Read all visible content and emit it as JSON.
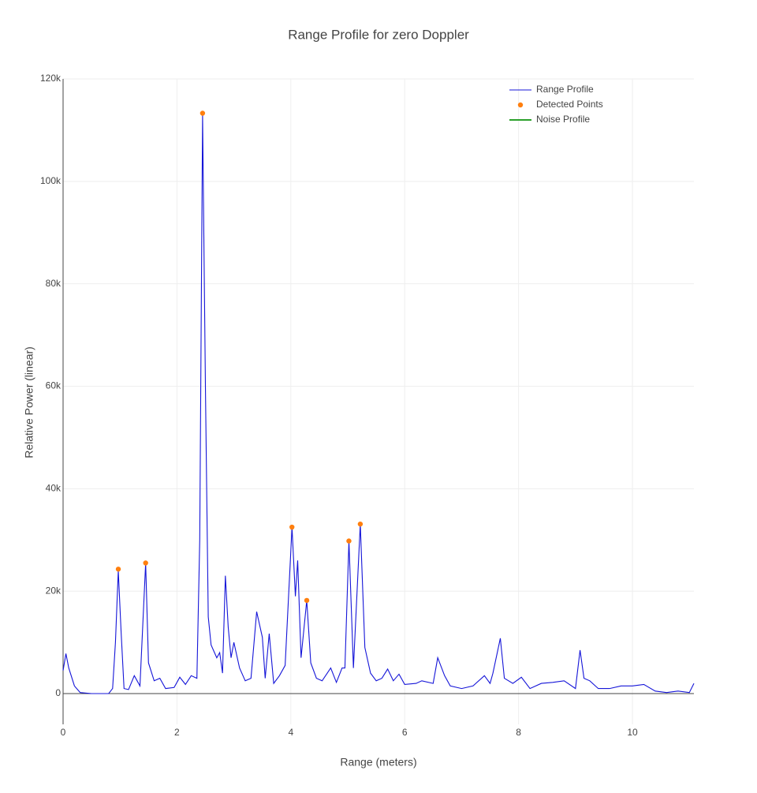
{
  "chart_data": {
    "type": "line",
    "title": "Range Profile for zero Doppler",
    "x_label": "Range (meters)",
    "y_label": "Relative Power (linear)",
    "xlim": [
      0,
      11.08
    ],
    "ylim": [
      -6000,
      120000
    ],
    "xticks": [
      0,
      2,
      4,
      6,
      8,
      10
    ],
    "yticks": [
      {
        "value": 0,
        "label": "0"
      },
      {
        "value": 20000,
        "label": "20k"
      },
      {
        "value": 40000,
        "label": "40k"
      },
      {
        "value": 60000,
        "label": "60k"
      },
      {
        "value": 80000,
        "label": "80k"
      },
      {
        "value": 100000,
        "label": "100k"
      },
      {
        "value": 120000,
        "label": "120k"
      }
    ],
    "grid": true,
    "legend": "top-right",
    "series": [
      {
        "name": "Range Profile",
        "color": "#1515d8",
        "mode": "line",
        "x": [
          0,
          0.05,
          0.1,
          0.2,
          0.3,
          0.5,
          0.8,
          0.87,
          0.92,
          0.97,
          1.02,
          1.07,
          1.15,
          1.25,
          1.35,
          1.45,
          1.5,
          1.6,
          1.7,
          1.8,
          1.95,
          2.05,
          2.15,
          2.25,
          2.35,
          2.4,
          2.45,
          2.5,
          2.55,
          2.6,
          2.7,
          2.75,
          2.8,
          2.85,
          2.9,
          2.95,
          3.0,
          3.1,
          3.2,
          3.3,
          3.4,
          3.5,
          3.55,
          3.62,
          3.7,
          3.8,
          3.9,
          4.02,
          4.08,
          4.12,
          4.18,
          4.28,
          4.35,
          4.45,
          4.55,
          4.7,
          4.8,
          4.9,
          4.95,
          5.02,
          5.1,
          5.22,
          5.3,
          5.4,
          5.5,
          5.6,
          5.7,
          5.8,
          5.9,
          6.0,
          6.2,
          6.3,
          6.5,
          6.58,
          6.7,
          6.8,
          7.0,
          7.2,
          7.4,
          7.5,
          7.55,
          7.68,
          7.75,
          7.9,
          8.05,
          8.2,
          8.4,
          8.6,
          8.8,
          9.0,
          9.08,
          9.15,
          9.25,
          9.4,
          9.6,
          9.8,
          10.0,
          10.2,
          10.4,
          10.6,
          10.8,
          11.0,
          11.08
        ],
        "values": [
          4500,
          7800,
          5000,
          1500,
          200,
          0,
          0,
          1000,
          10000,
          24000,
          12000,
          1000,
          800,
          3500,
          1500,
          25500,
          6000,
          2500,
          3000,
          1000,
          1200,
          3200,
          1800,
          3500,
          3000,
          30000,
          113000,
          60000,
          15000,
          9500,
          7000,
          8000,
          4000,
          23000,
          13000,
          7000,
          10000,
          5000,
          2500,
          3000,
          16000,
          11000,
          3000,
          11700,
          2000,
          3500,
          5500,
          32500,
          19000,
          26000,
          7000,
          18200,
          6000,
          3000,
          2500,
          5000,
          2200,
          5000,
          5000,
          29800,
          5000,
          33100,
          9000,
          4000,
          2500,
          3000,
          4800,
          2500,
          3800,
          1800,
          2000,
          2500,
          2000,
          7000,
          3500,
          1500,
          1000,
          1500,
          3500,
          2000,
          4000,
          10800,
          3000,
          2000,
          3200,
          1000,
          2000,
          2200,
          2500,
          1000,
          8500,
          3000,
          2500,
          1000,
          1000,
          1500,
          1500,
          1800,
          500,
          200,
          500,
          200,
          2000
        ]
      },
      {
        "name": "Detected Points",
        "color": "#ff7f0e",
        "mode": "markers",
        "x": [
          0.97,
          1.45,
          2.45,
          4.02,
          4.28,
          5.02,
          5.22
        ],
        "values": [
          24300,
          25500,
          113300,
          32500,
          18200,
          29800,
          33100
        ]
      },
      {
        "name": "Noise Profile",
        "color": "#2ca02c",
        "mode": "line",
        "x": [],
        "values": []
      }
    ]
  }
}
